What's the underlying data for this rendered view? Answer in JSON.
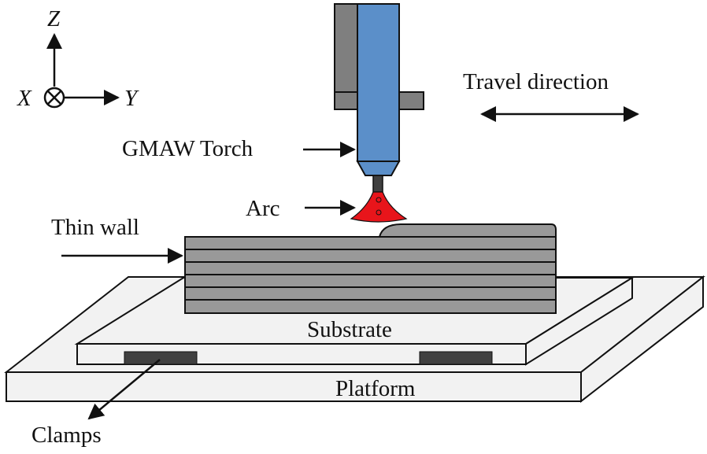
{
  "axes": {
    "z_label": "Z",
    "x_label": "X",
    "y_label": "Y"
  },
  "labels": {
    "travel_direction": "Travel direction",
    "torch": "GMAW Torch",
    "arc": "Arc",
    "thin_wall": "Thin wall",
    "substrate": "Substrate",
    "platform": "Platform",
    "clamps": "Clamps"
  },
  "colors": {
    "torch_blue": "#5b8fc9",
    "torch_holder": "#7f7f7f",
    "arc_red": "#e8151b",
    "wall_gray": "#999999",
    "substrate_fill": "#f2f2f2",
    "clamp_dark": "#404040"
  }
}
